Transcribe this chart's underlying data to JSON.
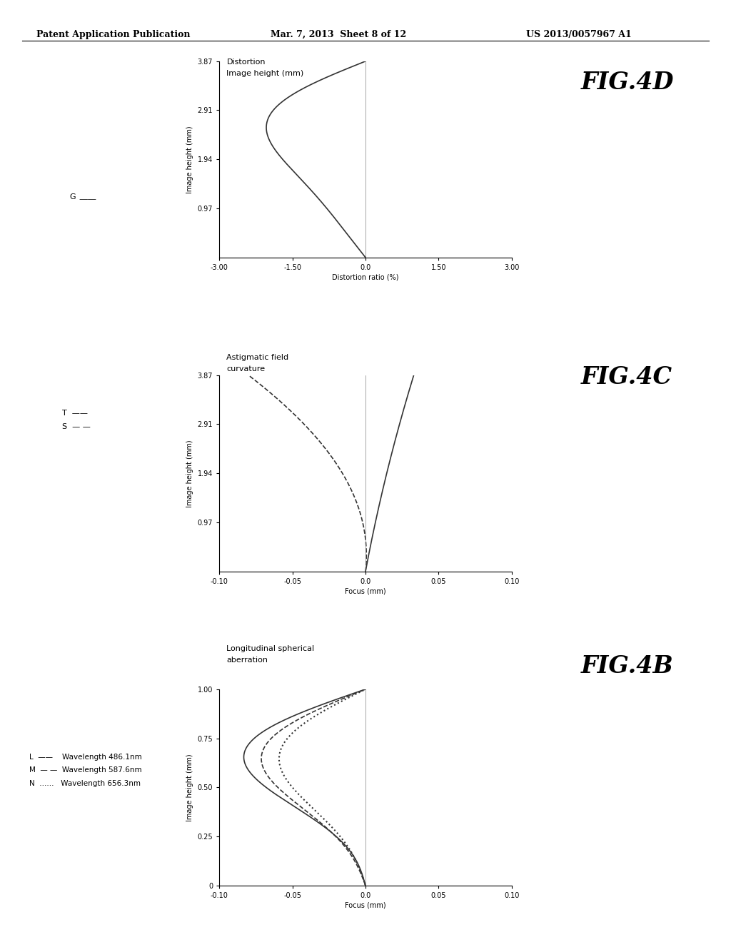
{
  "header_left": "Patent Application Publication",
  "header_mid": "Mar. 7, 2013  Sheet 8 of 12",
  "header_right": "US 2013/0057967 A1",
  "fig4B": {
    "title_line1": "Longitudinal spherical",
    "title_line2": "aberration",
    "xlabel": "Focus (mm)",
    "ylabel": "Image height (mm)",
    "ylabel_ticks": [
      "0",
      "0.25",
      "0.50",
      "0.75",
      "1.00"
    ],
    "ylabel_values": [
      0.0,
      0.25,
      0.5,
      0.75,
      1.0
    ],
    "xlim": [
      -0.1,
      0.1
    ],
    "ylim": [
      0.0,
      1.0
    ],
    "xticks": [
      -0.1,
      -0.05,
      0.0,
      0.05,
      0.1
    ],
    "xtick_labels": [
      "-0.10",
      "-0.05",
      "0.0",
      "0.05",
      "0.10"
    ],
    "fig_label": "FIG.4B"
  },
  "fig4C": {
    "title_line1": "Astigmatic field",
    "title_line2": "curvature",
    "xlabel": "Focus (mm)",
    "ylabel": "Image height (mm)",
    "ylabel_ticks": [
      "0.97",
      "1.94",
      "2.91",
      "3.87"
    ],
    "ylabel_values": [
      0.97,
      1.94,
      2.91,
      3.87
    ],
    "xlim": [
      -0.1,
      0.1
    ],
    "ylim": [
      0.0,
      3.87
    ],
    "xticks": [
      -0.1,
      -0.05,
      0.0,
      0.05,
      0.1
    ],
    "xtick_labels": [
      "-0.10",
      "-0.05",
      "0.0",
      "0.05",
      "0.10"
    ],
    "fig_label": "FIG.4C"
  },
  "fig4D": {
    "title_line1": "Distortion",
    "title_line2": "Image height (mm)",
    "xlabel": "Distortion ratio (%)",
    "ylabel_ticks": [
      "0.97",
      "1.94",
      "2.91",
      "3.87"
    ],
    "ylabel_values": [
      0.97,
      1.94,
      2.91,
      3.87
    ],
    "xlim": [
      -3.0,
      3.0
    ],
    "ylim": [
      0.0,
      3.87
    ],
    "xticks": [
      -3.0,
      -1.5,
      0.0,
      1.5,
      3.0
    ],
    "xtick_labels": [
      "-3.00",
      "-1.50",
      "0.0",
      "1.50",
      "3.00"
    ],
    "fig_label": "FIG.4D"
  },
  "bg_color": "#ffffff",
  "line_color": "#333333"
}
